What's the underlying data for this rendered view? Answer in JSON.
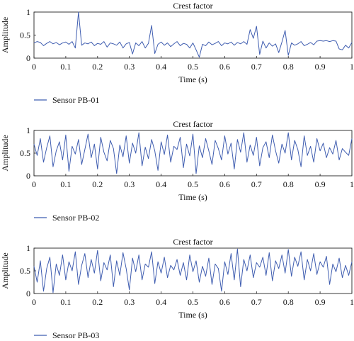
{
  "chart_data": [
    {
      "type": "line",
      "title": "Crest factor",
      "xlabel": "Time (s)",
      "ylabel": "Amplitude",
      "xlim": [
        0,
        1
      ],
      "ylim": [
        0,
        1
      ],
      "xticks": [
        "0",
        "0.1",
        "0.2",
        "0.3",
        "0.4",
        "0.5",
        "0.6",
        "0.7",
        "0.8",
        "0.9",
        "1"
      ],
      "yticks": [
        "0",
        "0.5",
        "1"
      ],
      "grid": false,
      "legend_position": "bottom-left",
      "series_color": "#3f5db0",
      "series": [
        {
          "name": "Sensor PB-01",
          "x": [
            0,
            0.01,
            0.02,
            0.03,
            0.04,
            0.05,
            0.06,
            0.07,
            0.08,
            0.09,
            0.1,
            0.11,
            0.12,
            0.13,
            0.14,
            0.15,
            0.16,
            0.17,
            0.18,
            0.19,
            0.2,
            0.21,
            0.22,
            0.23,
            0.24,
            0.25,
            0.26,
            0.27,
            0.28,
            0.29,
            0.3,
            0.31,
            0.32,
            0.33,
            0.34,
            0.35,
            0.36,
            0.37,
            0.38,
            0.39,
            0.4,
            0.41,
            0.42,
            0.43,
            0.44,
            0.45,
            0.46,
            0.47,
            0.48,
            0.49,
            0.5,
            0.51,
            0.52,
            0.53,
            0.54,
            0.55,
            0.56,
            0.57,
            0.58,
            0.59,
            0.6,
            0.61,
            0.62,
            0.63,
            0.64,
            0.65,
            0.66,
            0.67,
            0.68,
            0.69,
            0.7,
            0.71,
            0.72,
            0.73,
            0.74,
            0.75,
            0.76,
            0.77,
            0.78,
            0.79,
            0.8,
            0.81,
            0.82,
            0.83,
            0.84,
            0.85,
            0.86,
            0.87,
            0.88,
            0.89,
            0.9,
            0.91,
            0.92,
            0.93,
            0.94,
            0.95,
            0.96,
            0.97,
            0.98,
            0.99,
            1.0
          ],
          "values": [
            0.33,
            0.36,
            0.34,
            0.27,
            0.32,
            0.36,
            0.31,
            0.34,
            0.29,
            0.33,
            0.35,
            0.3,
            0.36,
            0.22,
            1.0,
            0.28,
            0.33,
            0.31,
            0.35,
            0.27,
            0.32,
            0.3,
            0.36,
            0.24,
            0.33,
            0.31,
            0.28,
            0.35,
            0.22,
            0.31,
            0.34,
            0.09,
            0.33,
            0.27,
            0.36,
            0.22,
            0.32,
            0.71,
            0.1,
            0.3,
            0.35,
            0.28,
            0.33,
            0.25,
            0.31,
            0.36,
            0.27,
            0.32,
            0.3,
            0.22,
            0.33,
            0.18,
            0.02,
            0.3,
            0.27,
            0.35,
            0.29,
            0.32,
            0.36,
            0.27,
            0.33,
            0.31,
            0.35,
            0.28,
            0.34,
            0.31,
            0.36,
            0.3,
            0.62,
            0.43,
            0.69,
            0.08,
            0.37,
            0.22,
            0.33,
            0.26,
            0.31,
            0.12,
            0.35,
            0.6,
            0.06,
            0.33,
            0.28,
            0.31,
            0.36,
            0.27,
            0.3,
            0.34,
            0.29,
            0.37,
            0.38,
            0.37,
            0.38,
            0.36,
            0.38,
            0.37,
            0.2,
            0.18,
            0.28,
            0.22,
            0.34
          ]
        }
      ]
    },
    {
      "type": "line",
      "title": "Crest factor",
      "xlabel": "Time (s)",
      "ylabel": "Amplitude",
      "xlim": [
        0,
        1
      ],
      "ylim": [
        0,
        1
      ],
      "xticks": [
        "0",
        "0.1",
        "0.2",
        "0.3",
        "0.4",
        "0.5",
        "0.6",
        "0.7",
        "0.8",
        "0.9",
        "1"
      ],
      "yticks": [
        "0",
        "0.5",
        "1"
      ],
      "grid": false,
      "legend_position": "bottom-left",
      "series_color": "#3f5db0",
      "series": [
        {
          "name": "Sensor PB-02",
          "x": [
            0,
            0.01,
            0.02,
            0.03,
            0.04,
            0.05,
            0.06,
            0.07,
            0.08,
            0.09,
            0.1,
            0.11,
            0.12,
            0.13,
            0.14,
            0.15,
            0.16,
            0.17,
            0.18,
            0.19,
            0.2,
            0.21,
            0.22,
            0.23,
            0.24,
            0.25,
            0.26,
            0.27,
            0.28,
            0.29,
            0.3,
            0.31,
            0.32,
            0.33,
            0.34,
            0.35,
            0.36,
            0.37,
            0.38,
            0.39,
            0.4,
            0.41,
            0.42,
            0.43,
            0.44,
            0.45,
            0.46,
            0.47,
            0.48,
            0.49,
            0.5,
            0.51,
            0.52,
            0.53,
            0.54,
            0.55,
            0.56,
            0.57,
            0.58,
            0.59,
            0.6,
            0.61,
            0.62,
            0.63,
            0.64,
            0.65,
            0.66,
            0.67,
            0.68,
            0.69,
            0.7,
            0.71,
            0.72,
            0.73,
            0.74,
            0.75,
            0.76,
            0.77,
            0.78,
            0.79,
            0.8,
            0.81,
            0.82,
            0.83,
            0.84,
            0.85,
            0.86,
            0.87,
            0.88,
            0.89,
            0.9,
            0.91,
            0.92,
            0.93,
            0.94,
            0.95,
            0.96,
            0.97,
            0.98,
            0.99,
            1.0
          ],
          "values": [
            0.7,
            0.45,
            0.82,
            0.3,
            0.62,
            0.88,
            0.2,
            0.55,
            0.75,
            0.35,
            0.9,
            0.1,
            0.65,
            0.48,
            0.8,
            0.25,
            0.58,
            0.92,
            0.4,
            0.7,
            0.15,
            0.85,
            0.52,
            0.33,
            0.78,
            0.6,
            0.05,
            0.68,
            0.42,
            0.88,
            0.28,
            0.72,
            0.5,
            0.95,
            0.22,
            0.63,
            0.38,
            0.8,
            0.55,
            0.12,
            0.75,
            0.47,
            0.9,
            0.3,
            0.65,
            0.58,
            0.85,
            0.18,
            0.7,
            0.44,
            0.92,
            0.05,
            0.66,
            0.4,
            0.82,
            0.55,
            0.25,
            0.78,
            0.6,
            0.35,
            0.88,
            0.48,
            0.72,
            0.15,
            0.8,
            0.52,
            0.95,
            0.3,
            0.68,
            0.45,
            0.85,
            0.22,
            0.62,
            0.75,
            0.4,
            0.9,
            0.55,
            0.28,
            0.7,
            0.5,
            0.95,
            0.35,
            0.78,
            0.58,
            0.2,
            0.88,
            0.45,
            0.65,
            0.3,
            0.82,
            0.55,
            0.72,
            0.4,
            0.62,
            0.48,
            0.78,
            0.35,
            0.6,
            0.52,
            0.45,
            0.82
          ]
        }
      ]
    },
    {
      "type": "line",
      "title": "Crest factor",
      "xlabel": "Time (s)",
      "ylabel": "Amplitude",
      "xlim": [
        0,
        1
      ],
      "ylim": [
        0,
        1
      ],
      "xticks": [
        "0",
        "0.1",
        "0.2",
        "0.3",
        "0.4",
        "0.5",
        "0.6",
        "0.7",
        "0.8",
        "0.9",
        "1"
      ],
      "yticks": [
        "0",
        "0.5",
        "1"
      ],
      "grid": false,
      "legend_position": "bottom-left",
      "series_color": "#3f5db0",
      "series": [
        {
          "name": "Sensor PB-03",
          "x": [
            0,
            0.01,
            0.02,
            0.03,
            0.04,
            0.05,
            0.06,
            0.07,
            0.08,
            0.09,
            0.1,
            0.11,
            0.12,
            0.13,
            0.14,
            0.15,
            0.16,
            0.17,
            0.18,
            0.19,
            0.2,
            0.21,
            0.22,
            0.23,
            0.24,
            0.25,
            0.26,
            0.27,
            0.28,
            0.29,
            0.3,
            0.31,
            0.32,
            0.33,
            0.34,
            0.35,
            0.36,
            0.37,
            0.38,
            0.39,
            0.4,
            0.41,
            0.42,
            0.43,
            0.44,
            0.45,
            0.46,
            0.47,
            0.48,
            0.49,
            0.5,
            0.51,
            0.52,
            0.53,
            0.54,
            0.55,
            0.56,
            0.57,
            0.58,
            0.59,
            0.6,
            0.61,
            0.62,
            0.63,
            0.64,
            0.65,
            0.66,
            0.67,
            0.68,
            0.69,
            0.7,
            0.71,
            0.72,
            0.73,
            0.74,
            0.75,
            0.76,
            0.77,
            0.78,
            0.79,
            0.8,
            0.81,
            0.82,
            0.83,
            0.84,
            0.85,
            0.86,
            0.87,
            0.88,
            0.89,
            0.9,
            0.91,
            0.92,
            0.93,
            0.94,
            0.95,
            0.96,
            0.97,
            0.98,
            0.99,
            1.0
          ],
          "values": [
            0.6,
            0.25,
            0.72,
            0.05,
            0.55,
            0.8,
            0.02,
            0.65,
            0.4,
            0.85,
            0.3,
            0.7,
            0.5,
            0.92,
            0.2,
            0.62,
            0.88,
            0.35,
            0.75,
            0.45,
            0.95,
            0.28,
            0.68,
            0.52,
            0.85,
            0.15,
            0.72,
            0.4,
            0.9,
            0.55,
            0.08,
            0.78,
            0.48,
            0.85,
            0.3,
            0.65,
            0.58,
            0.92,
            0.22,
            0.7,
            0.45,
            0.8,
            0.35,
            0.62,
            0.52,
            0.75,
            0.4,
            0.68,
            0.3,
            0.85,
            0.48,
            0.72,
            0.25,
            0.6,
            0.38,
            0.78,
            0.2,
            0.65,
            0.55,
            0.05,
            0.7,
            0.42,
            0.88,
            0.3,
            0.98,
            0.15,
            0.75,
            0.5,
            0.85,
            0.35,
            0.68,
            0.58,
            0.8,
            0.4,
            0.9,
            0.28,
            0.72,
            0.55,
            0.85,
            0.45,
            0.97,
            0.38,
            0.8,
            0.6,
            0.92,
            0.3,
            0.75,
            0.5,
            0.88,
            0.42,
            0.7,
            0.58,
            0.82,
            0.2,
            0.65,
            0.48,
            0.78,
            0.35,
            0.62,
            0.4,
            0.7
          ]
        }
      ]
    }
  ]
}
